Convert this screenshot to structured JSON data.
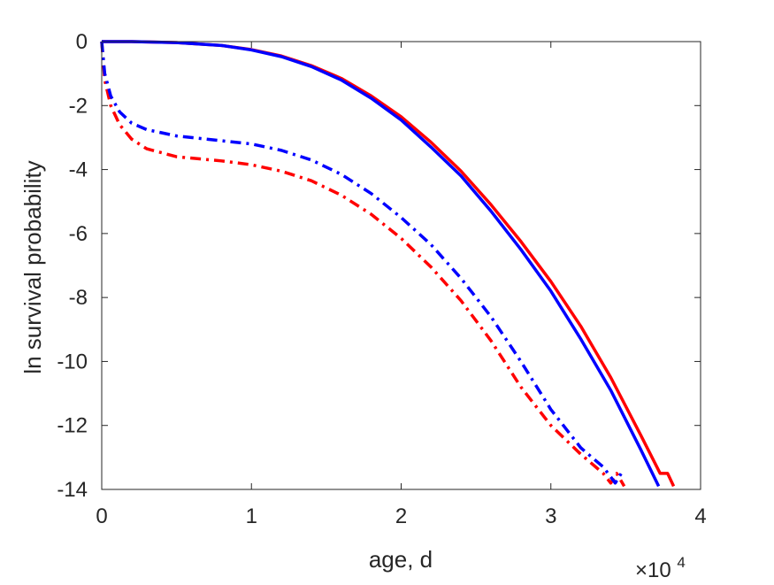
{
  "chart_data": {
    "type": "line",
    "xlabel": "age, d",
    "ylabel": "ln survival probability",
    "x_multiplier_label": {
      "base": "×10",
      "exponent": "4"
    },
    "xlim": [
      0,
      40000
    ],
    "ylim": [
      -14,
      0
    ],
    "x_ticks": [
      0,
      10000,
      20000,
      30000,
      40000
    ],
    "x_tick_labels": [
      "0",
      "1",
      "2",
      "3",
      "4"
    ],
    "y_ticks": [
      0,
      -2,
      -4,
      -6,
      -8,
      -10,
      -12,
      -14
    ],
    "y_tick_labels": [
      "0",
      "-2",
      "-4",
      "-6",
      "-8",
      "-10",
      "-12",
      "-14"
    ],
    "grid": false,
    "series": [
      {
        "color": "#ff0000",
        "line_style": "solid",
        "points": [
          [
            0,
            0
          ],
          [
            2000,
            0
          ],
          [
            5000,
            -0.03
          ],
          [
            8000,
            -0.12
          ],
          [
            10000,
            -0.25
          ],
          [
            12000,
            -0.45
          ],
          [
            14000,
            -0.75
          ],
          [
            16000,
            -1.15
          ],
          [
            18000,
            -1.7
          ],
          [
            20000,
            -2.35
          ],
          [
            22000,
            -3.15
          ],
          [
            24000,
            -4.05
          ],
          [
            26000,
            -5.1
          ],
          [
            28000,
            -6.25
          ],
          [
            30000,
            -7.5
          ],
          [
            32000,
            -8.9
          ],
          [
            34000,
            -10.5
          ],
          [
            36000,
            -12.3
          ],
          [
            37300,
            -13.5
          ],
          [
            37800,
            -13.5
          ],
          [
            38200,
            -13.9
          ]
        ]
      },
      {
        "color": "#0000ff",
        "line_style": "solid",
        "points": [
          [
            0,
            0
          ],
          [
            2000,
            0
          ],
          [
            5000,
            -0.03
          ],
          [
            8000,
            -0.12
          ],
          [
            10000,
            -0.26
          ],
          [
            12000,
            -0.47
          ],
          [
            14000,
            -0.78
          ],
          [
            16000,
            -1.2
          ],
          [
            18000,
            -1.77
          ],
          [
            20000,
            -2.45
          ],
          [
            22000,
            -3.3
          ],
          [
            24000,
            -4.2
          ],
          [
            26000,
            -5.3
          ],
          [
            28000,
            -6.5
          ],
          [
            30000,
            -7.8
          ],
          [
            32000,
            -9.3
          ],
          [
            34000,
            -10.9
          ],
          [
            36000,
            -12.75
          ],
          [
            37200,
            -13.9
          ]
        ]
      },
      {
        "color": "#ff0000",
        "line_style": "dashdot",
        "points": [
          [
            0,
            0
          ],
          [
            200,
            -1.2
          ],
          [
            600,
            -2.0
          ],
          [
            1200,
            -2.6
          ],
          [
            2000,
            -3.05
          ],
          [
            3000,
            -3.35
          ],
          [
            5000,
            -3.6
          ],
          [
            8000,
            -3.73
          ],
          [
            10000,
            -3.85
          ],
          [
            12000,
            -4.05
          ],
          [
            14000,
            -4.35
          ],
          [
            16000,
            -4.8
          ],
          [
            18000,
            -5.4
          ],
          [
            20000,
            -6.15
          ],
          [
            22000,
            -7.05
          ],
          [
            24000,
            -8.1
          ],
          [
            26000,
            -9.35
          ],
          [
            28000,
            -10.8
          ],
          [
            30000,
            -12.0
          ],
          [
            32000,
            -12.9
          ],
          [
            33500,
            -13.5
          ],
          [
            34000,
            -13.8
          ],
          [
            34400,
            -13.5
          ],
          [
            34900,
            -13.9
          ]
        ]
      },
      {
        "color": "#0000ff",
        "line_style": "dashdot",
        "points": [
          [
            0,
            0
          ],
          [
            200,
            -1.0
          ],
          [
            600,
            -1.7
          ],
          [
            1200,
            -2.2
          ],
          [
            2000,
            -2.55
          ],
          [
            3000,
            -2.75
          ],
          [
            5000,
            -2.95
          ],
          [
            8000,
            -3.1
          ],
          [
            10000,
            -3.2
          ],
          [
            12000,
            -3.4
          ],
          [
            14000,
            -3.7
          ],
          [
            16000,
            -4.15
          ],
          [
            18000,
            -4.75
          ],
          [
            20000,
            -5.5
          ],
          [
            22000,
            -6.35
          ],
          [
            24000,
            -7.4
          ],
          [
            26000,
            -8.6
          ],
          [
            28000,
            -10.0
          ],
          [
            30000,
            -11.5
          ],
          [
            32000,
            -12.7
          ],
          [
            33500,
            -13.3
          ],
          [
            34300,
            -13.8
          ],
          [
            34700,
            -13.5
          ]
        ]
      }
    ]
  }
}
